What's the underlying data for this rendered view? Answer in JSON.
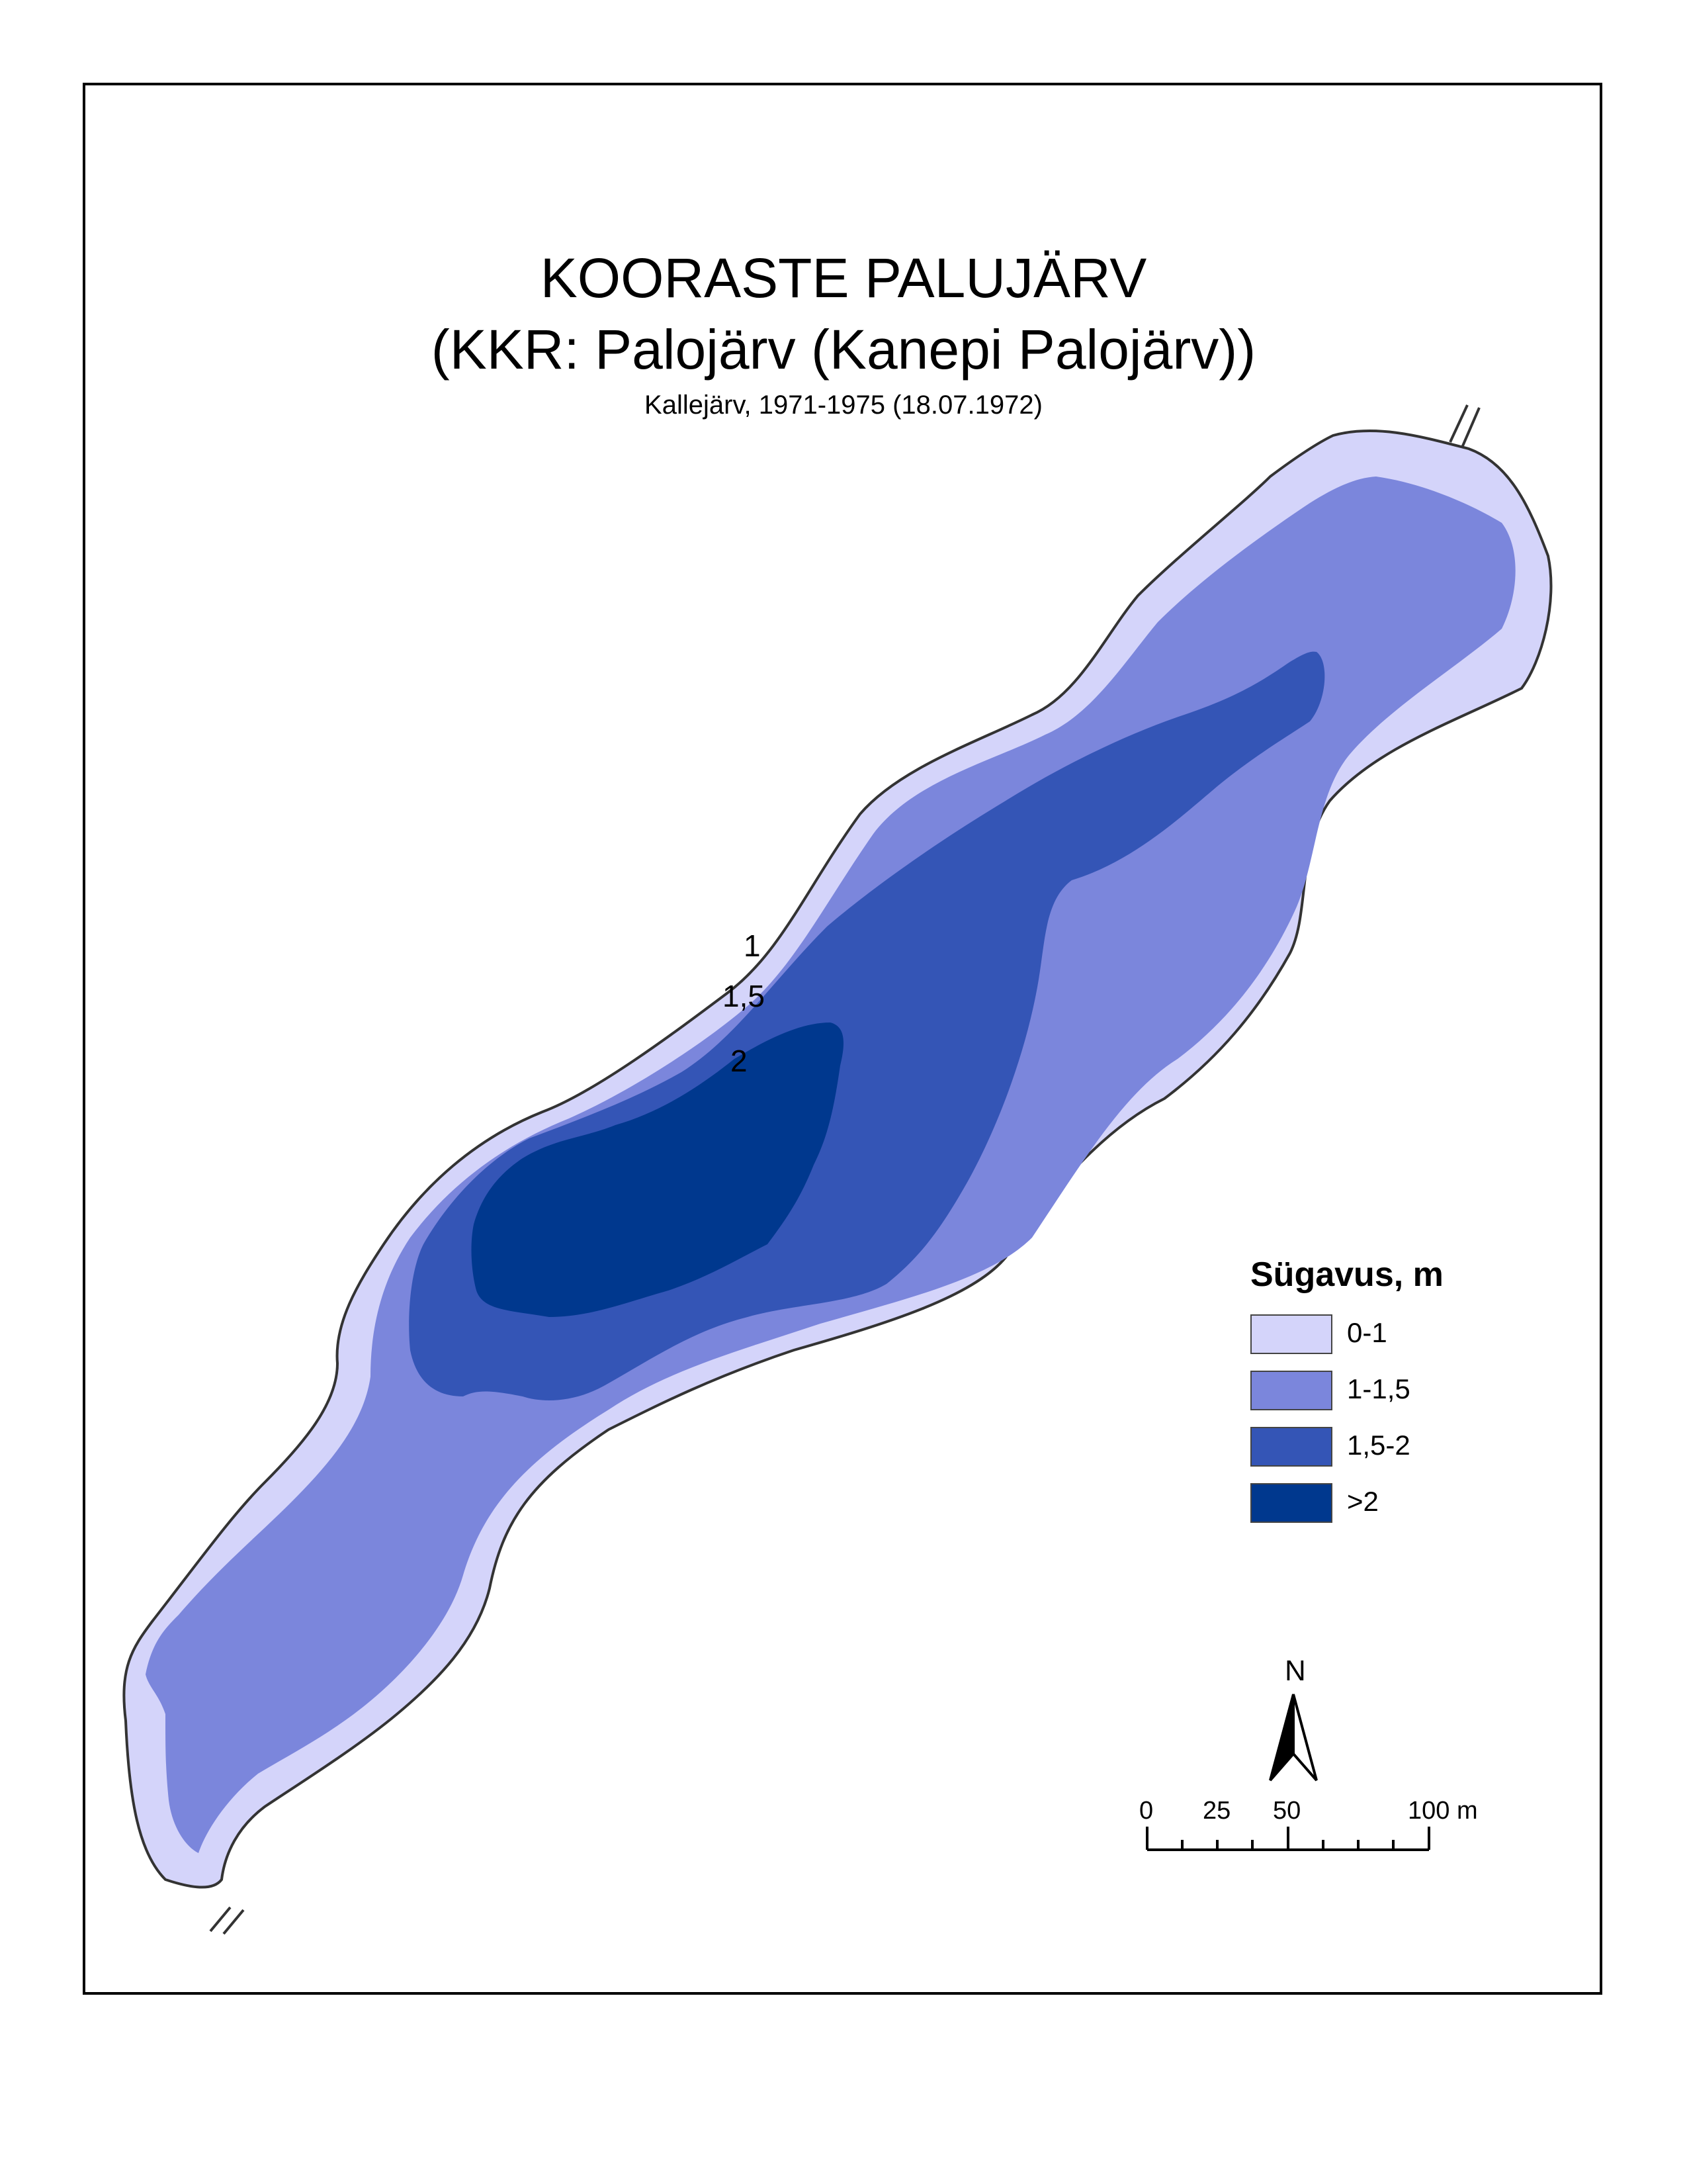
{
  "title": {
    "line1": "KOORASTE PALUJÄRV",
    "line2": "(KKR: Palojärv (Kanepi Palojärv))",
    "subtitle": "Kallejärv, 1971-1975 (18.07.1972)"
  },
  "depth_labels": [
    "1",
    "1,5",
    "2"
  ],
  "legend": {
    "title": "Sügavus, m",
    "items": [
      {
        "label": "0-1",
        "color": "#d4d4fa"
      },
      {
        "label": "1-1,5",
        "color": "#7b86dc"
      },
      {
        "label": "1,5-2",
        "color": "#3455b6"
      },
      {
        "label": ">2",
        "color": "#00388e"
      }
    ]
  },
  "north_arrow": {
    "label": "N",
    "icon": "north-arrow-icon"
  },
  "scale_bar": {
    "labels": [
      "0",
      "25",
      "50",
      "100 m"
    ]
  },
  "colors": {
    "shoreline": "#333333",
    "frame": "#000000"
  }
}
